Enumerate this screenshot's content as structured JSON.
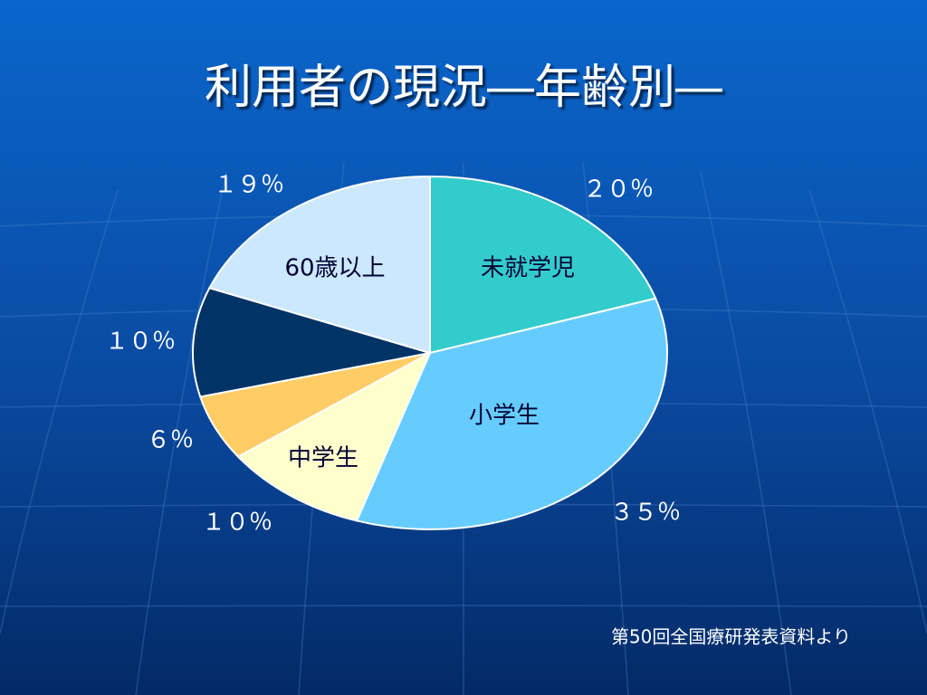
{
  "chart_data": {
    "type": "pie",
    "title": "利用者の現況―年齢別―",
    "categories": [
      "未就学児",
      "小学生",
      "中学生",
      null,
      null,
      "60歳以上"
    ],
    "values": [
      20,
      35,
      10,
      6,
      10,
      19
    ],
    "value_labels": [
      "２０％",
      "３５％",
      "１０％",
      "６％",
      "１０％",
      "１９％"
    ],
    "colors": [
      "#33cccc",
      "#66ccff",
      "#ffffcc",
      "#ffcc66",
      "#003366",
      "#cce8ff"
    ],
    "source": "第50回全国療研発表資料より"
  }
}
